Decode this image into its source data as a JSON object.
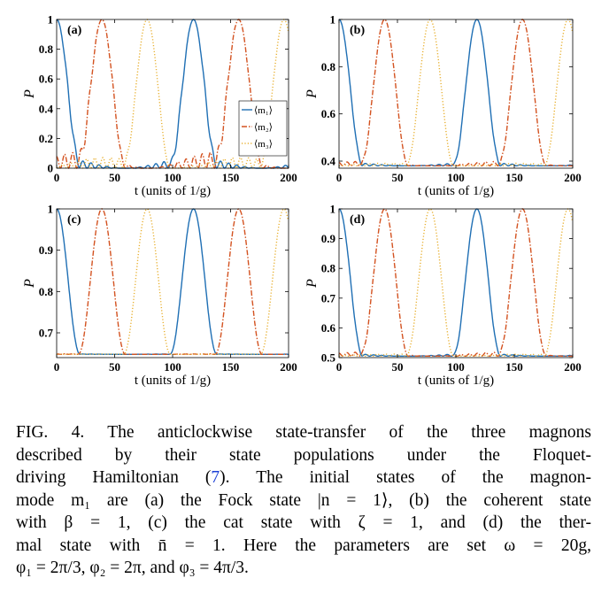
{
  "chart_data": [
    {
      "type": "line",
      "panel_label": "(a)",
      "xlabel": "t (units of 1/g)",
      "ylabel": "P",
      "xlim": [
        0,
        200
      ],
      "ylim": [
        0,
        1
      ],
      "x_ticks": [
        "0",
        "50",
        "100",
        "150",
        "200"
      ],
      "y_ticks": [
        "0",
        "0.2",
        "0.4",
        "0.6",
        "0.8",
        "1"
      ],
      "legend": {
        "placement": "right",
        "entries": [
          "⟨m₁⟩",
          "⟨m₂⟩",
          "⟨m₃⟩"
        ]
      },
      "series": [
        {
          "name": "⟨m₁⟩",
          "color": "#1f6fb4",
          "style": "solid",
          "min": 0.0,
          "max": 1.0,
          "offset": 0,
          "ripple": 0.12
        },
        {
          "name": "⟨m₂⟩",
          "color": "#d35220",
          "style": "dashdot",
          "min": 0.0,
          "max": 1.0,
          "offset": 39,
          "ripple": 0.18
        },
        {
          "name": "⟨m₃⟩",
          "color": "#e8b030",
          "style": "dotted",
          "min": 0.0,
          "max": 1.0,
          "offset": 78,
          "ripple": 0.12
        }
      ],
      "period": 118
    },
    {
      "type": "line",
      "panel_label": "(b)",
      "xlabel": "t (units of 1/g)",
      "ylabel": "P",
      "xlim": [
        0,
        200
      ],
      "ylim": [
        0.37,
        1
      ],
      "x_ticks": [
        "0",
        "50",
        "100",
        "150",
        "200"
      ],
      "y_ticks": [
        "0.4",
        "0.6",
        "0.8",
        "1"
      ],
      "series": [
        {
          "name": "⟨m₁⟩",
          "color": "#1f6fb4",
          "style": "solid",
          "min": 0.38,
          "max": 1.0,
          "offset": 0,
          "ripple": 0.04
        },
        {
          "name": "⟨m₂⟩",
          "color": "#d35220",
          "style": "dashdot",
          "min": 0.38,
          "max": 1.0,
          "offset": 39,
          "ripple": 0.05
        },
        {
          "name": "⟨m₃⟩",
          "color": "#e8b030",
          "style": "dotted",
          "min": 0.38,
          "max": 1.0,
          "offset": 78,
          "ripple": 0.03
        }
      ],
      "period": 118
    },
    {
      "type": "line",
      "panel_label": "(c)",
      "xlabel": "t (units of 1/g)",
      "ylabel": "P",
      "xlim": [
        0,
        200
      ],
      "ylim": [
        0.64,
        1
      ],
      "x_ticks": [
        "0",
        "50",
        "100",
        "150",
        "200"
      ],
      "y_ticks": [
        "0.7",
        "0.8",
        "0.9",
        "1"
      ],
      "series": [
        {
          "name": "⟨m₁⟩",
          "color": "#1f6fb4",
          "style": "solid",
          "min": 0.648,
          "max": 1.0,
          "offset": 0,
          "ripple": 0.006
        },
        {
          "name": "⟨m₂⟩",
          "color": "#d35220",
          "style": "dashdot",
          "min": 0.648,
          "max": 1.0,
          "offset": 39,
          "ripple": 0.006
        },
        {
          "name": "⟨m₃⟩",
          "color": "#e8b030",
          "style": "dotted",
          "min": 0.648,
          "max": 1.0,
          "offset": 78,
          "ripple": 0.004
        }
      ],
      "period": 118
    },
    {
      "type": "line",
      "panel_label": "(d)",
      "xlabel": "t (units of 1/g)",
      "ylabel": "P",
      "xlim": [
        0,
        200
      ],
      "ylim": [
        0.5,
        1
      ],
      "x_ticks": [
        "0",
        "50",
        "100",
        "150",
        "200"
      ],
      "y_ticks": [
        "0.5",
        "0.6",
        "0.7",
        "0.8",
        "0.9",
        "1"
      ],
      "series": [
        {
          "name": "⟨m₁⟩",
          "color": "#1f6fb4",
          "style": "solid",
          "min": 0.505,
          "max": 1.0,
          "offset": 0,
          "ripple": 0.03
        },
        {
          "name": "⟨m₂⟩",
          "color": "#d35220",
          "style": "dashdot",
          "min": 0.505,
          "max": 1.0,
          "offset": 39,
          "ripple": 0.045
        },
        {
          "name": "⟨m₃⟩",
          "color": "#e8b030",
          "style": "dotted",
          "min": 0.505,
          "max": 1.0,
          "offset": 78,
          "ripple": 0.025
        }
      ],
      "period": 118
    }
  ],
  "caption": {
    "lines": [
      "FIG. 4. The anticlockwise state-transfer of the three magnons",
      "described by their state populations under the Floquet-",
      "driving Hamiltonian (",
      "The initial states of the magnon-",
      "mode m₁ are (a) the Fock state |n = 1⟩, (b) the coherent state",
      "with β = 1, (c) the cat state with ζ = 1, and (d) the ther-",
      "mal state with n̄ = 1. Here the parameters are set ω = 20g,",
      "φ₁ = 2π/3, φ₂ = 2π, and φ₃ = 4π/3."
    ],
    "ref": "7",
    "ref_after": ")."
  }
}
